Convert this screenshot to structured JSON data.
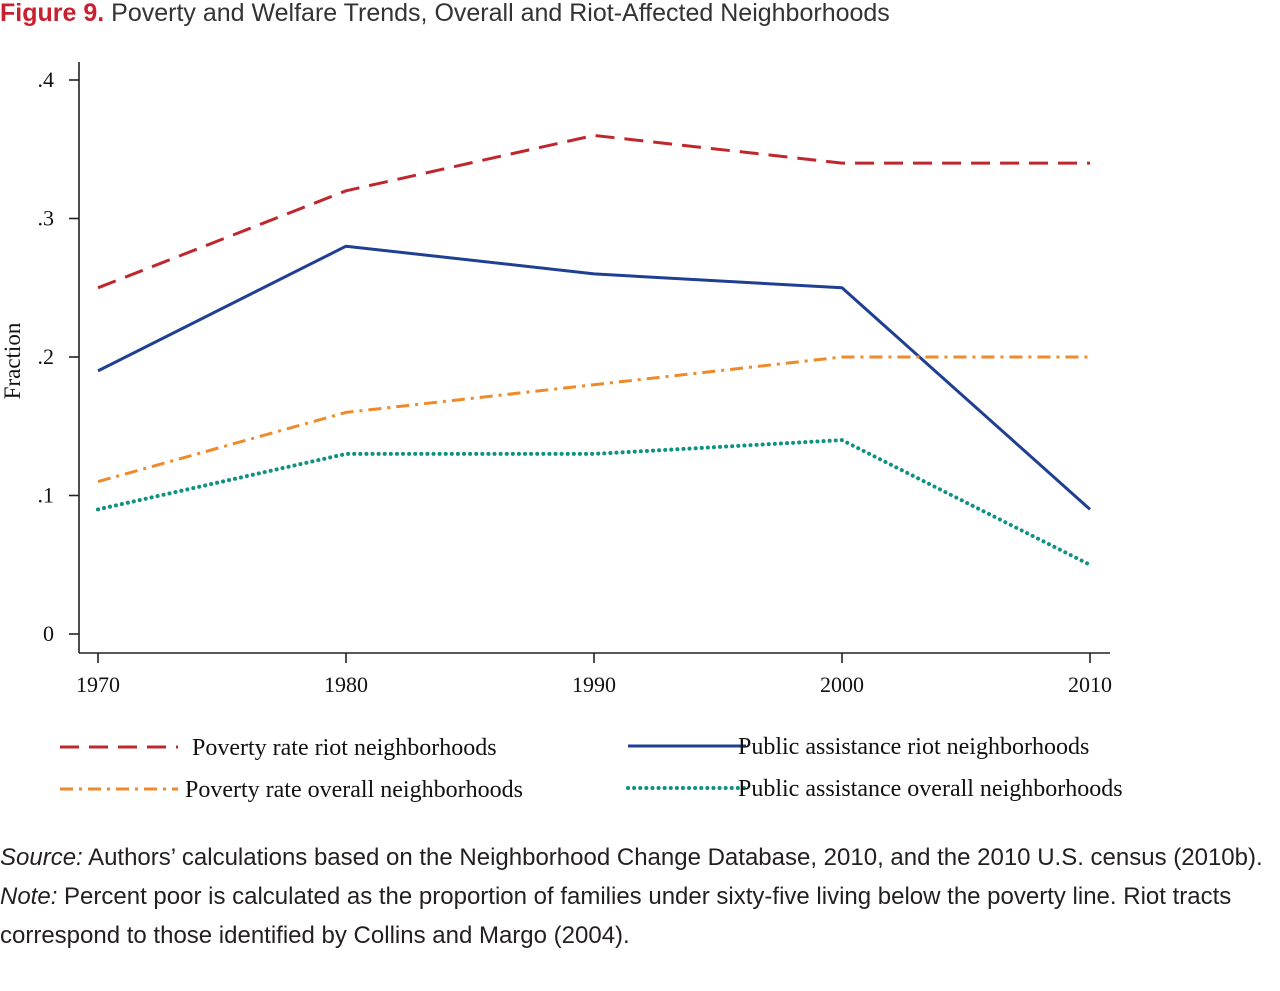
{
  "figure": {
    "label": "Figure 9.",
    "title": "Poverty and Welfare Trends, Overall and Riot-Affected Neighborhoods"
  },
  "chart_data": {
    "type": "line",
    "title": "Poverty and Welfare Trends, Overall and Riot-Affected Neighborhoods",
    "xlabel": "",
    "ylabel": "Fraction",
    "x": [
      1970,
      1980,
      1990,
      2000,
      2010
    ],
    "xticks": [
      "1970",
      "1980",
      "1990",
      "2000",
      "2010"
    ],
    "yticks": [
      {
        "value": 0,
        "label": "0"
      },
      {
        "value": 0.1,
        "label": ".1"
      },
      {
        "value": 0.2,
        "label": ".2"
      },
      {
        "value": 0.3,
        "label": ".3"
      },
      {
        "value": 0.4,
        "label": ".4"
      }
    ],
    "xlim": [
      1970,
      2010
    ],
    "ylim": [
      0,
      0.4
    ],
    "grid": false,
    "legend_position": "bottom",
    "series": [
      {
        "name": "Poverty rate riot neighborhoods",
        "values": [
          0.25,
          0.32,
          0.36,
          0.34,
          0.34
        ],
        "color": "#c0272d",
        "style": "dashed"
      },
      {
        "name": "Public assistance riot neighborhoods",
        "values": [
          0.19,
          0.28,
          0.26,
          0.25,
          0.09
        ],
        "color": "#1f3f93",
        "style": "solid"
      },
      {
        "name": "Poverty rate overall neighborhoods",
        "values": [
          0.11,
          0.16,
          0.18,
          0.2,
          0.2
        ],
        "color": "#ee8a2a",
        "style": "dashdot"
      },
      {
        "name": "Public assistance overall neighborhoods",
        "values": [
          0.09,
          0.13,
          0.13,
          0.14,
          0.05
        ],
        "color": "#0f9281",
        "style": "dotted"
      }
    ]
  },
  "notes": {
    "source_lead": "Source:",
    "source_text": " Authors’ calculations based on the Neighborhood Change Database, 2010, and the 2010 U.S. census (2010b).",
    "note_lead": "Note:",
    "note_text": " Percent poor is calculated as the proportion of families under sixty-five living below the poverty line. Riot tracts correspond to those identified by Collins and Margo (2004)."
  }
}
